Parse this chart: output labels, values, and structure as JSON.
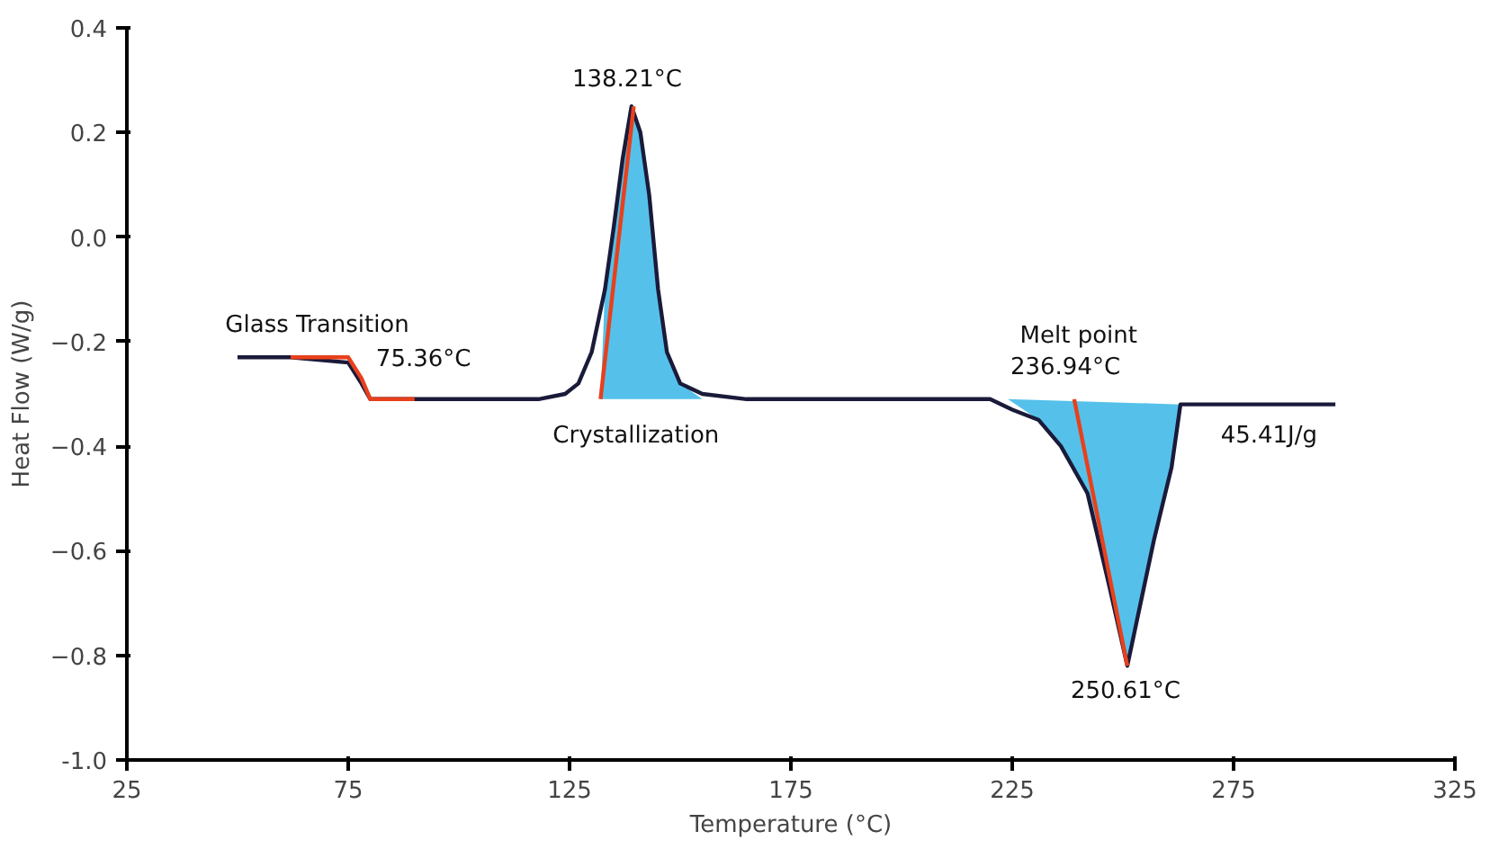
{
  "chart_data": {
    "type": "line",
    "xlabel": "Temperature (°C)",
    "ylabel": "Heat Flow (W/g)",
    "xlim": [
      25,
      325
    ],
    "xticks": [
      25,
      75,
      125,
      175,
      225,
      275,
      325
    ],
    "ylim": [
      -1.0,
      0.4
    ],
    "yticks": [
      {
        "value": -1.0,
        "label": "-1.0"
      },
      -0.8,
      -0.6,
      -0.4,
      -0.2,
      {
        "value": 0,
        "label": "0.0"
      },
      0.2,
      0.4
    ],
    "grid": false,
    "marker": "none",
    "line_style": "solid",
    "series": [
      {
        "type": "area",
        "color": "#55c1ea",
        "x": [
          132,
          133,
          135,
          137,
          139,
          141,
          143,
          145,
          147,
          150,
          155
        ],
        "values": [
          -0.31,
          -0.1,
          0.02,
          0.15,
          0.25,
          0.2,
          0.08,
          -0.1,
          -0.22,
          -0.28,
          -0.31
        ]
      },
      {
        "type": "area",
        "color": "#55c1ea",
        "x": [
          224,
          231,
          236,
          242,
          247,
          251,
          254,
          257,
          261,
          263
        ],
        "values": [
          -0.31,
          -0.35,
          -0.4,
          -0.49,
          -0.67,
          -0.82,
          -0.7,
          -0.58,
          -0.44,
          -0.32
        ]
      },
      {
        "color": "#1a1a3a",
        "x": [
          50,
          62,
          75,
          78,
          80,
          90,
          100,
          118,
          124,
          127,
          130,
          133,
          135,
          137,
          139,
          141,
          143,
          145,
          147,
          150,
          155,
          165,
          175,
          200,
          220,
          225,
          231,
          236,
          242,
          247,
          251,
          254,
          257,
          261,
          263,
          270,
          298
        ],
        "values": [
          -0.23,
          -0.23,
          -0.24,
          -0.28,
          -0.31,
          -0.31,
          -0.31,
          -0.31,
          -0.3,
          -0.28,
          -0.22,
          -0.1,
          0.02,
          0.15,
          0.25,
          0.2,
          0.08,
          -0.1,
          -0.22,
          -0.28,
          -0.3,
          -0.31,
          -0.31,
          -0.31,
          -0.31,
          -0.33,
          -0.35,
          -0.4,
          -0.49,
          -0.67,
          -0.82,
          -0.7,
          -0.58,
          -0.44,
          -0.32,
          -0.32,
          -0.32
        ]
      },
      {
        "color": "#e8401c",
        "x": [
          62,
          75,
          78,
          80,
          90
        ],
        "values": [
          -0.23,
          -0.23,
          -0.27,
          -0.31,
          -0.31
        ]
      },
      {
        "color": "#e8401c",
        "x": [
          132,
          139.5
        ],
        "values": [
          -0.31,
          0.25
        ]
      },
      {
        "color": "#e8401c",
        "x": [
          239,
          251
        ],
        "values": [
          -0.31,
          -0.82
        ]
      }
    ],
    "annotations": [
      "Glass Transition",
      "75.36°C",
      "138.21°C",
      "Crystallization",
      "Melt point",
      "236.94°C",
      "45.41J/g",
      "250.61°C"
    ]
  }
}
